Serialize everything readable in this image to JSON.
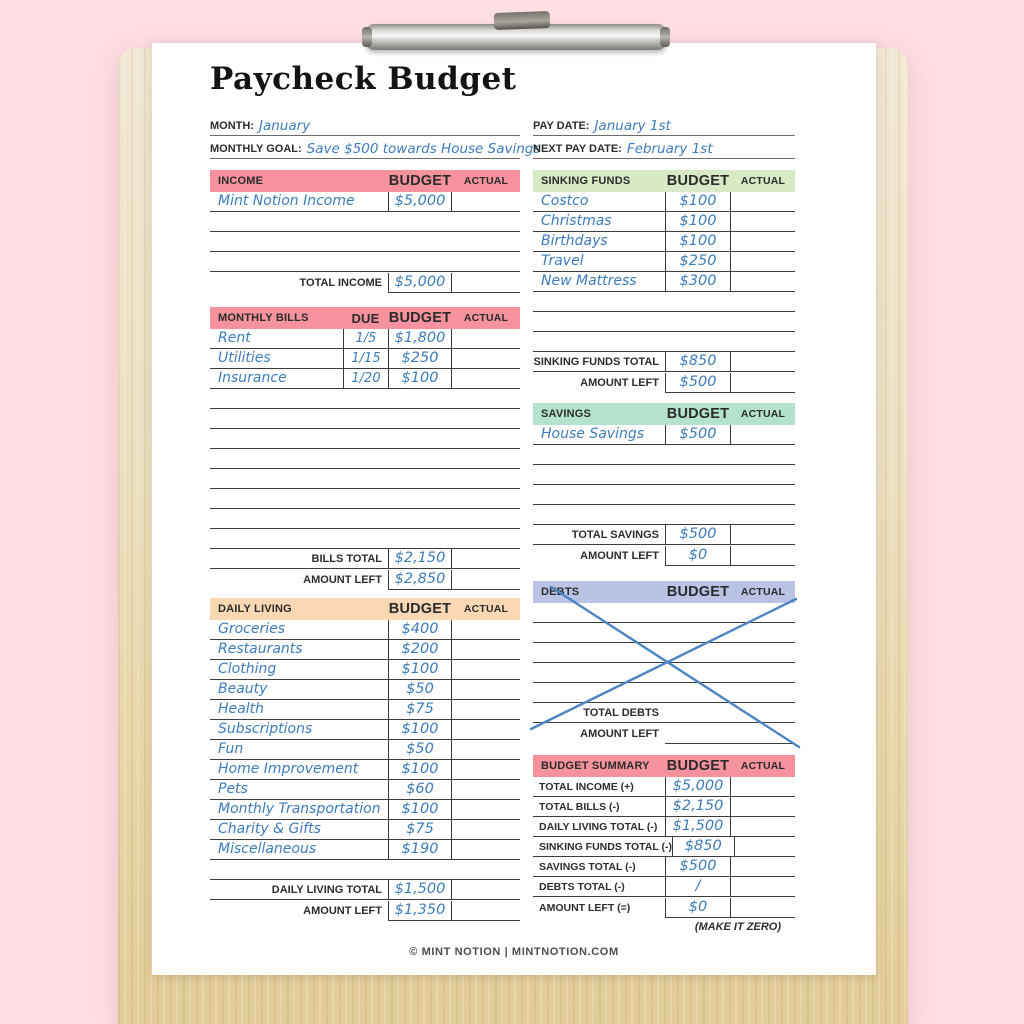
{
  "page": {
    "title": "Paycheck Budget",
    "footer": "© MINT NOTION | MINTNOTION.COM"
  },
  "meta": {
    "month_label": "MONTH:",
    "month_value": "January",
    "goal_label": "MONTHLY GOAL:",
    "goal_value": "Save $500 towards House Savings",
    "pay_date_label": "PAY DATE:",
    "pay_date_value": "January 1st",
    "next_pay_date_label": "NEXT PAY DATE:",
    "next_pay_date_value": "February 1st"
  },
  "colors": {
    "background_pink": "#fcdee3",
    "paper": "#ffffff",
    "header_pink": "#f5929e",
    "header_peach": "#fad8b4",
    "header_light_green": "#d8e9c6",
    "header_mint": "#b4e3cd",
    "header_periwinkle": "#bac3e6",
    "handwriting_blue": "#3e7cba",
    "cross_out_blue": "#4d85c4",
    "line_dark": "#3c3c3c"
  },
  "tables": {
    "income": {
      "title": "INCOME",
      "header_bg": "#f5929e",
      "col_headers": [
        "BUDGET",
        "ACTUAL"
      ],
      "rows": [
        {
          "name": "Mint Notion Income",
          "budget": "$5,000",
          "actual": ""
        },
        {
          "name": "",
          "budget": "",
          "actual": ""
        },
        {
          "name": "",
          "budget": "",
          "actual": ""
        },
        {
          "name": "",
          "budget": "",
          "actual": ""
        }
      ],
      "totals": [
        {
          "label": "TOTAL INCOME",
          "budget": "$5,000",
          "actual": ""
        }
      ]
    },
    "monthly_bills": {
      "title": "MONTHLY BILLS",
      "header_bg": "#f5929e",
      "has_due": true,
      "col_headers": [
        "DUE",
        "BUDGET",
        "ACTUAL"
      ],
      "rows": [
        {
          "name": "Rent",
          "due": "1/5",
          "budget": "$1,800",
          "actual": ""
        },
        {
          "name": "Utilities",
          "due": "1/15",
          "budget": "$250",
          "actual": ""
        },
        {
          "name": "Insurance",
          "due": "1/20",
          "budget": "$100",
          "actual": ""
        },
        {
          "name": "",
          "due": "",
          "budget": "",
          "actual": ""
        },
        {
          "name": "",
          "due": "",
          "budget": "",
          "actual": ""
        },
        {
          "name": "",
          "due": "",
          "budget": "",
          "actual": ""
        },
        {
          "name": "",
          "due": "",
          "budget": "",
          "actual": ""
        },
        {
          "name": "",
          "due": "",
          "budget": "",
          "actual": ""
        },
        {
          "name": "",
          "due": "",
          "budget": "",
          "actual": ""
        },
        {
          "name": "",
          "due": "",
          "budget": "",
          "actual": ""
        },
        {
          "name": "",
          "due": "",
          "budget": "",
          "actual": ""
        }
      ],
      "totals": [
        {
          "label": "BILLS TOTAL",
          "budget": "$2,150",
          "actual": ""
        },
        {
          "label": "AMOUNT LEFT",
          "budget": "$2,850",
          "actual": ""
        }
      ]
    },
    "daily_living": {
      "title": "DAILY LIVING",
      "header_bg": "#fad8b4",
      "col_headers": [
        "BUDGET",
        "ACTUAL"
      ],
      "rows": [
        {
          "name": "Groceries",
          "budget": "$400",
          "actual": ""
        },
        {
          "name": "Restaurants",
          "budget": "$200",
          "actual": ""
        },
        {
          "name": "Clothing",
          "budget": "$100",
          "actual": ""
        },
        {
          "name": "Beauty",
          "budget": "$50",
          "actual": ""
        },
        {
          "name": "Health",
          "budget": "$75",
          "actual": ""
        },
        {
          "name": "Subscriptions",
          "budget": "$100",
          "actual": ""
        },
        {
          "name": "Fun",
          "budget": "$50",
          "actual": ""
        },
        {
          "name": "Home Improvement",
          "budget": "$100",
          "actual": ""
        },
        {
          "name": "Pets",
          "budget": "$60",
          "actual": ""
        },
        {
          "name": "Monthly Transportation",
          "budget": "$100",
          "actual": ""
        },
        {
          "name": "Charity & Gifts",
          "budget": "$75",
          "actual": ""
        },
        {
          "name": "Miscellaneous",
          "budget": "$190",
          "actual": ""
        },
        {
          "name": "",
          "budget": "",
          "actual": ""
        }
      ],
      "totals": [
        {
          "label": "DAILY LIVING TOTAL",
          "budget": "$1,500",
          "actual": ""
        },
        {
          "label": "AMOUNT LEFT",
          "budget": "$1,350",
          "actual": ""
        }
      ]
    },
    "sinking_funds": {
      "title": "SINKING FUNDS",
      "header_bg": "#d8e9c6",
      "col_headers": [
        "BUDGET",
        "ACTUAL"
      ],
      "rows": [
        {
          "name": "Costco",
          "budget": "$100",
          "actual": ""
        },
        {
          "name": "Christmas",
          "budget": "$100",
          "actual": ""
        },
        {
          "name": "Birthdays",
          "budget": "$100",
          "actual": ""
        },
        {
          "name": "Travel",
          "budget": "$250",
          "actual": ""
        },
        {
          "name": "New Mattress",
          "budget": "$300",
          "actual": ""
        },
        {
          "name": "",
          "budget": "",
          "actual": ""
        },
        {
          "name": "",
          "budget": "",
          "actual": ""
        },
        {
          "name": "",
          "budget": "",
          "actual": ""
        }
      ],
      "totals": [
        {
          "label": "SINKING FUNDS TOTAL",
          "budget": "$850",
          "actual": ""
        },
        {
          "label": "AMOUNT LEFT",
          "budget": "$500",
          "actual": ""
        }
      ]
    },
    "savings": {
      "title": "SAVINGS",
      "header_bg": "#b4e3cd",
      "col_headers": [
        "BUDGET",
        "ACTUAL"
      ],
      "rows": [
        {
          "name": "House Savings",
          "budget": "$500",
          "actual": ""
        },
        {
          "name": "",
          "budget": "",
          "actual": ""
        },
        {
          "name": "",
          "budget": "",
          "actual": ""
        },
        {
          "name": "",
          "budget": "",
          "actual": ""
        },
        {
          "name": "",
          "budget": "",
          "actual": ""
        }
      ],
      "totals": [
        {
          "label": "TOTAL SAVINGS",
          "budget": "$500",
          "actual": ""
        },
        {
          "label": "AMOUNT LEFT",
          "budget": "$0",
          "actual": ""
        }
      ]
    },
    "debts": {
      "title": "DEBTS",
      "header_bg": "#bac3e6",
      "crossed_out": true,
      "cross_color": "#4d85c4",
      "col_headers": [
        "BUDGET",
        "ACTUAL"
      ],
      "rows": [
        {
          "name": "",
          "budget": "",
          "actual": ""
        },
        {
          "name": "",
          "budget": "",
          "actual": ""
        },
        {
          "name": "",
          "budget": "",
          "actual": ""
        },
        {
          "name": "",
          "budget": "",
          "actual": ""
        },
        {
          "name": "",
          "budget": "",
          "actual": ""
        }
      ],
      "totals": [
        {
          "label": "TOTAL DEBTS",
          "budget": "",
          "actual": ""
        },
        {
          "label": "AMOUNT LEFT",
          "budget": "",
          "actual": ""
        }
      ]
    },
    "budget_summary": {
      "title": "BUDGET SUMMARY",
      "header_bg": "#f5929e",
      "label_style": "plain",
      "col_headers": [
        "BUDGET",
        "ACTUAL"
      ],
      "rows": [
        {
          "name": "TOTAL INCOME (+)",
          "budget": "$5,000",
          "actual": ""
        },
        {
          "name": "TOTAL BILLS (-)",
          "budget": "$2,150",
          "actual": ""
        },
        {
          "name": "DAILY LIVING TOTAL (-)",
          "budget": "$1,500",
          "actual": ""
        },
        {
          "name": "SINKING FUNDS TOTAL (-)",
          "budget": "$850",
          "actual": ""
        },
        {
          "name": "SAVINGS TOTAL (-)",
          "budget": "$500",
          "actual": ""
        },
        {
          "name": "DEBTS TOTAL (-)",
          "budget": "/",
          "actual": ""
        },
        {
          "name": "AMOUNT LEFT (=)",
          "budget": "$0",
          "actual": ""
        }
      ],
      "totals": [],
      "footnote": "(MAKE IT ZERO)"
    }
  }
}
